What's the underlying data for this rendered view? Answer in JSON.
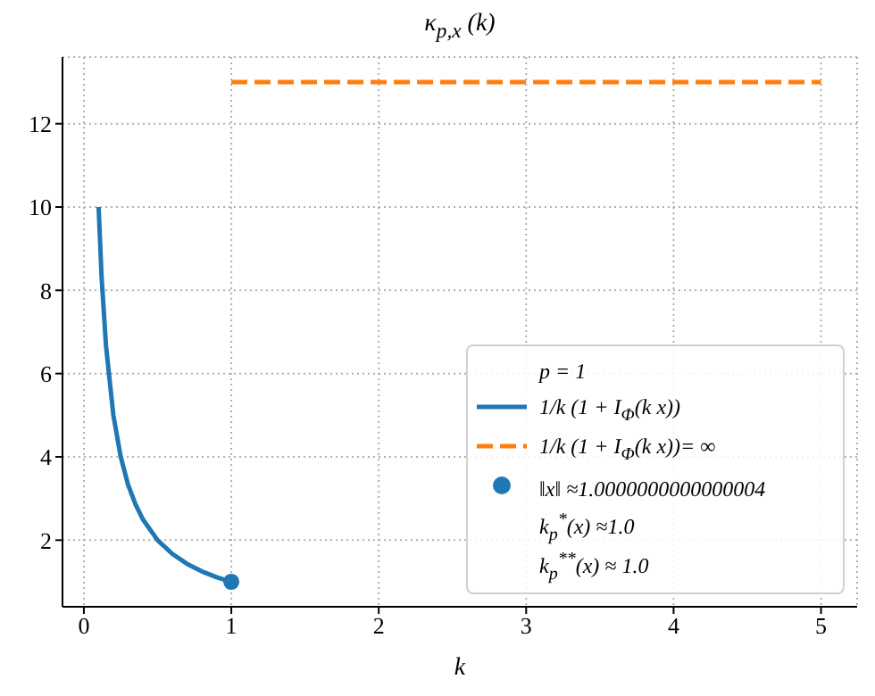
{
  "chart_data": {
    "type": "line",
    "title": "κ$_{p,x}$ (k)",
    "xlabel": "k",
    "xlim": [
      -0.145,
      5.245
    ],
    "xticks": [
      0,
      1,
      2,
      3,
      4,
      5
    ],
    "ylim": [
      0.4,
      13.6
    ],
    "yticks": [
      2,
      4,
      6,
      8,
      10,
      12
    ],
    "grid": true,
    "legend": "bottom right",
    "legend_title": "p = 1",
    "series": [
      {
        "name": "1/k (1 + I$_{Φ}$(k x))",
        "color": "#1f77b4",
        "line_style": "solid",
        "x": [
          0.1,
          0.12,
          0.15,
          0.2,
          0.25,
          0.3,
          0.35,
          0.4,
          0.5,
          0.6,
          0.7,
          0.8,
          0.9,
          1.0
        ],
        "values": [
          10,
          8.33,
          6.67,
          5,
          4,
          3.33,
          2.86,
          2.5,
          2,
          1.67,
          1.43,
          1.25,
          1.11,
          1
        ]
      },
      {
        "name": "1/k (1 + I$_{Φ}$(k x))= ∞",
        "color": "#ff7f0e",
        "line_style": "dashed",
        "x": [
          1,
          5
        ],
        "values": [
          13,
          13
        ]
      },
      {
        "name": "‖x‖ ≈1.0000000000000004",
        "type": "scatter",
        "marker": "circle",
        "color": "#1f77b4",
        "x": [
          1
        ],
        "values": [
          1
        ]
      }
    ],
    "annotations": [
      "k$_{p}$$^{*}$(x) ≈1.0",
      "k$_{p}$$^{**}$(x) ≈ 1.0"
    ]
  }
}
